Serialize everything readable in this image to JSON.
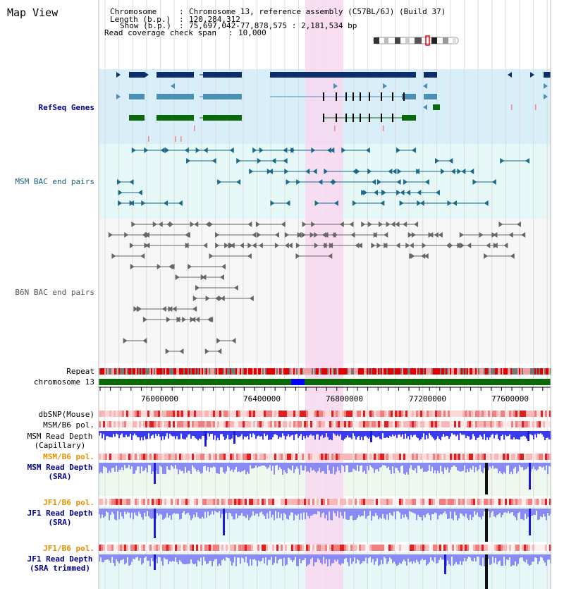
{
  "header": {
    "title": "Map View",
    "chromosome_key": "Chromosome",
    "chromosome_value": "Chromosome 13, reference assembly (C57BL/6J) (Build 37)",
    "length_key": "Length (b.p.)",
    "length_value": "120,284,312",
    "show_key": "Show (b.p.)",
    "show_value": "75,697,042-77,878,575 : 2,181,534 bp",
    "span_key": "Read coverage check span",
    "span_value": "10,000"
  },
  "tracks": {
    "refseq": "RefSeq Genes",
    "msm_bac": "MSM BAC end pairs",
    "b6n_bac": "B6N BAC end pairs",
    "repeat": "Repeat",
    "chromosome": "chromosome 13",
    "dbsnp": "dbSNP(Mouse)",
    "msm_b6_pol": "MSM/B6 pol.",
    "msm_depth_cap_1": "MSM Read Depth",
    "msm_depth_cap_2": "(Capillary)",
    "msm_b6_pol_2": "MSM/B6 pol.",
    "msm_depth_sra_1": "MSM Read Depth",
    "msm_depth_sra_2": "(SRA)",
    "jf1_b6_pol": "JF1/B6 pol.",
    "jf1_depth_sra_1": "JF1 Read Depth",
    "jf1_depth_sra_2": "(SRA)",
    "jf1_b6_pol_2": "JF1/B6 pol.",
    "jf1_depth_trim_1": "JF1 Read Depth",
    "jf1_depth_trim_2": "(SRA trimmed)"
  },
  "axis": {
    "ticks": [
      "76000000",
      "76400000",
      "76800000",
      "77200000",
      "77600000"
    ]
  },
  "colors": {
    "highlight": "#f8d8f0",
    "refseq_bg": "#d8eef9",
    "bac_bg": "#e6f7f7",
    "gene_navy": "#0c2e6b",
    "gene_steel": "#4a8fb5",
    "gene_green": "#0a6a0a",
    "bac_teal": "#1a6a8a",
    "bac_gray": "#666666",
    "repeat_red": "#e00000",
    "chrom_green": "#0a6a0a",
    "chrom_blue": "#0000ff",
    "depth_blue": "#3a3af0",
    "depth_light": "#8a8af5"
  }
}
